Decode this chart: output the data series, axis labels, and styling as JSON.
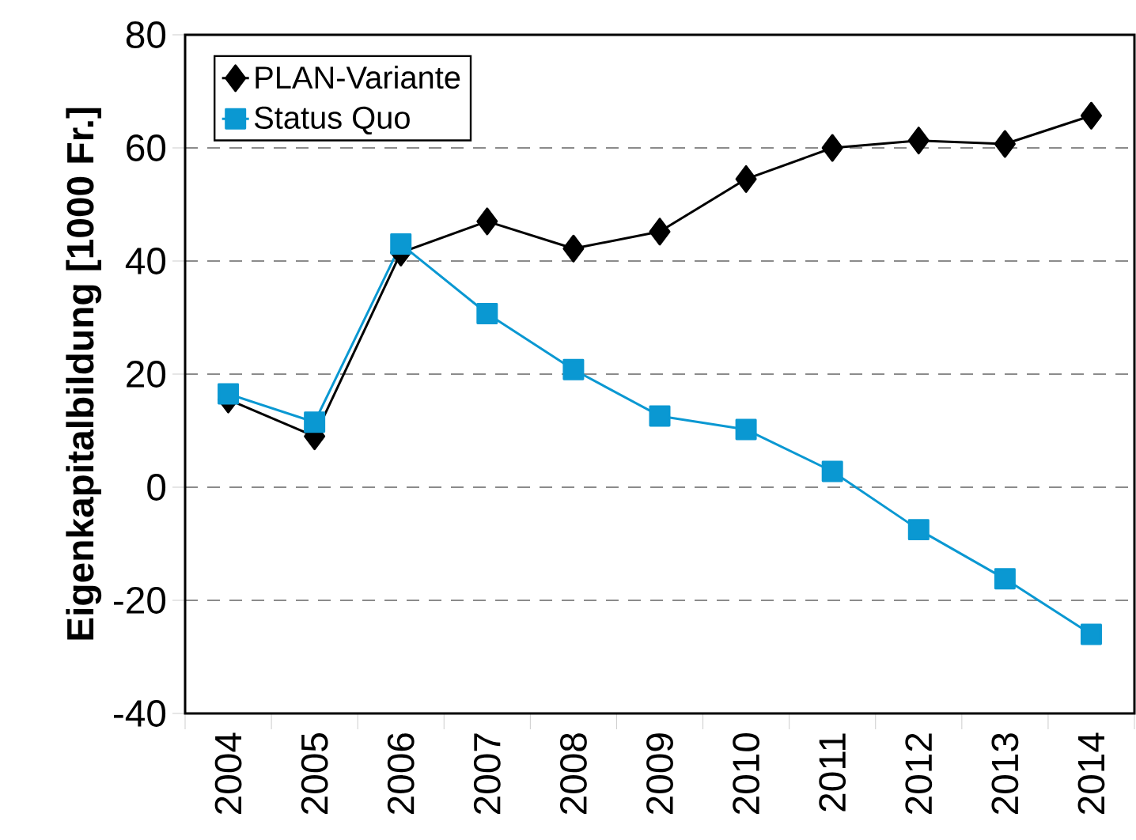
{
  "chart_data": {
    "type": "line",
    "ylabel": "Eigenkapitalbildung [1000 Fr.]",
    "categories": [
      "2004",
      "2005",
      "2006",
      "2007",
      "2008",
      "2009",
      "2010",
      "2011",
      "2012",
      "2013",
      "2014"
    ],
    "series": [
      {
        "name": "PLAN-Variante",
        "color": "#000000",
        "marker": "diamond",
        "values": [
          15.5,
          9,
          41.5,
          47,
          42.2,
          45.2,
          54.5,
          60,
          61.3,
          60.7,
          65.7
        ]
      },
      {
        "name": "Status Quo",
        "color": "#0a98d2",
        "marker": "square",
        "values": [
          16.5,
          11.5,
          43,
          30.7,
          20.8,
          12.6,
          10.2,
          2.8,
          -7.5,
          -16.2,
          -26
        ]
      }
    ],
    "ylim": [
      -40,
      80
    ],
    "yticks": [
      -40,
      -20,
      0,
      20,
      40,
      60,
      80
    ],
    "grid": "y",
    "legend": "top left",
    "line_style": "solid"
  }
}
